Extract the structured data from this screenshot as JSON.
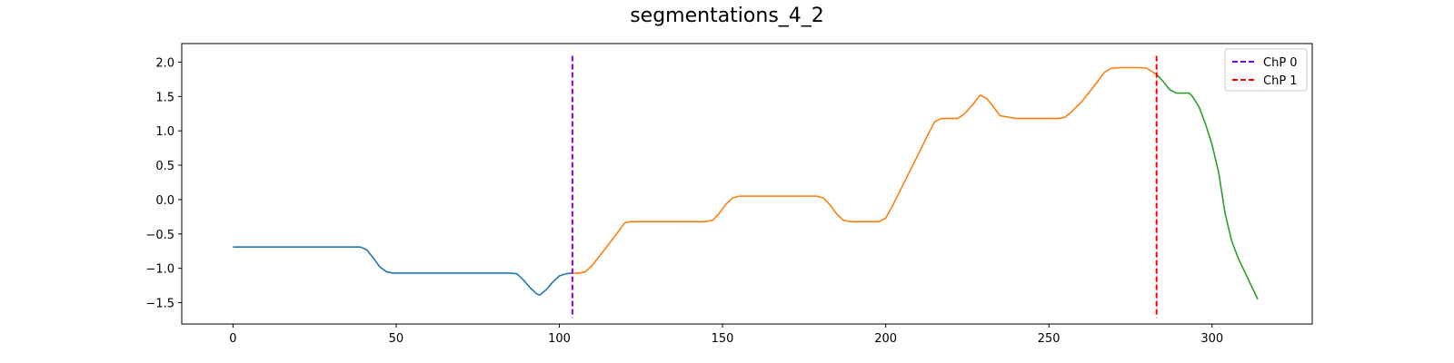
{
  "chart_data": {
    "type": "line",
    "title": "segmentations_4_2",
    "xlabel": "",
    "ylabel": "",
    "xlim": [
      -15.7,
      330.7
    ],
    "ylim": [
      -1.81,
      2.27
    ],
    "x_ticks": [
      0,
      50,
      100,
      150,
      200,
      250,
      300
    ],
    "y_ticks": [
      2.0,
      1.5,
      1.0,
      0.5,
      0.0,
      -0.5,
      -1.0,
      -1.5
    ],
    "y_tick_labels": [
      "2.0",
      "1.5",
      "1.0",
      "0.5",
      "0.0",
      "−0.5",
      "−1.0",
      "−1.5"
    ],
    "grid": false,
    "legend_placement": "top-right",
    "series": [
      {
        "color": "#1f77b4",
        "x": [
          0,
          5,
          10,
          15,
          20,
          25,
          30,
          35,
          39,
          41,
          43,
          45,
          47,
          49,
          55,
          60,
          65,
          70,
          75,
          80,
          85,
          87,
          89,
          91,
          93,
          94,
          96,
          98,
          100,
          102,
          104
        ],
        "y": [
          -0.69,
          -0.69,
          -0.69,
          -0.69,
          -0.69,
          -0.69,
          -0.69,
          -0.69,
          -0.69,
          -0.73,
          -0.85,
          -0.98,
          -1.05,
          -1.07,
          -1.07,
          -1.07,
          -1.07,
          -1.07,
          -1.07,
          -1.07,
          -1.07,
          -1.08,
          -1.17,
          -1.28,
          -1.37,
          -1.39,
          -1.31,
          -1.2,
          -1.11,
          -1.08,
          -1.07
        ]
      },
      {
        "color": "#ff7f0e",
        "x": [
          104,
          106,
          108,
          110,
          114,
          118,
          120,
          122,
          125,
          130,
          135,
          140,
          145,
          147,
          149,
          151,
          153,
          155,
          160,
          165,
          170,
          175,
          179,
          181,
          183,
          185,
          187,
          189,
          195,
          198,
          200,
          202,
          206,
          210,
          213,
          215,
          217,
          220,
          222,
          224,
          227,
          229,
          231,
          233,
          235,
          240,
          245,
          250,
          253,
          255,
          257,
          260,
          265,
          267,
          269,
          272,
          275,
          278,
          280,
          282,
          283
        ],
        "y": [
          -1.07,
          -1.07,
          -1.05,
          -0.96,
          -0.72,
          -0.47,
          -0.34,
          -0.32,
          -0.32,
          -0.32,
          -0.32,
          -0.32,
          -0.32,
          -0.3,
          -0.2,
          -0.07,
          0.02,
          0.05,
          0.05,
          0.05,
          0.05,
          0.05,
          0.05,
          0.02,
          -0.08,
          -0.21,
          -0.3,
          -0.32,
          -0.32,
          -0.32,
          -0.27,
          -0.1,
          0.28,
          0.66,
          0.95,
          1.13,
          1.18,
          1.18,
          1.18,
          1.24,
          1.4,
          1.52,
          1.47,
          1.35,
          1.22,
          1.18,
          1.18,
          1.18,
          1.18,
          1.2,
          1.28,
          1.42,
          1.72,
          1.85,
          1.91,
          1.92,
          1.92,
          1.92,
          1.91,
          1.85,
          1.82
        ]
      },
      {
        "color": "#2ca02c",
        "x": [
          283,
          285,
          287,
          289,
          291,
          293,
          294,
          296,
          298,
          300,
          302,
          304,
          306,
          308,
          310,
          312,
          314
        ],
        "y": [
          1.82,
          1.72,
          1.6,
          1.55,
          1.55,
          1.55,
          1.5,
          1.35,
          1.1,
          0.8,
          0.4,
          -0.2,
          -0.6,
          -0.85,
          -1.05,
          -1.25,
          -1.45
        ]
      }
    ],
    "changepoints": [
      {
        "name": "ChP 0",
        "x": 104,
        "color": "#8000ff"
      },
      {
        "name": "ChP 1",
        "x": 283,
        "color": "#ff0000"
      }
    ]
  }
}
